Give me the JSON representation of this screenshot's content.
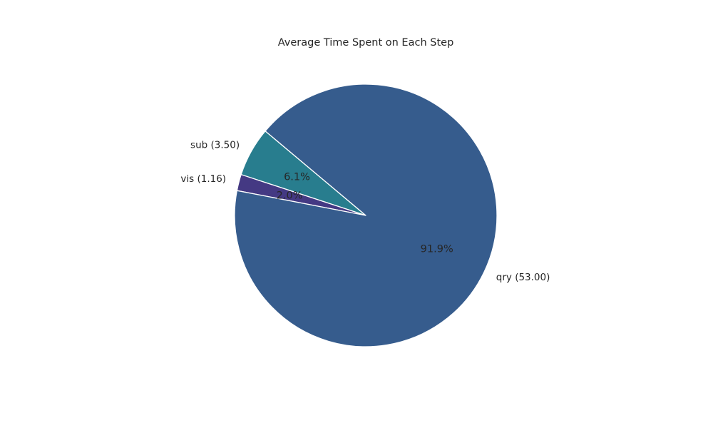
{
  "chart_data": {
    "type": "pie",
    "title": "Average Time Spent on Each Step",
    "slices": [
      {
        "name": "sub",
        "value": 3.5,
        "label": "sub (3.50)",
        "percent_label": "6.1%",
        "color": "#287d8e"
      },
      {
        "name": "vis",
        "value": 1.16,
        "label": "vis (1.16)",
        "percent_label": "2.0%",
        "color": "#443983"
      },
      {
        "name": "qry",
        "value": 53.0,
        "label": "qry (53.00)",
        "percent_label": "91.9%",
        "color": "#365c8d"
      }
    ],
    "start_angle_deg": 140,
    "direction": "counterclockwise",
    "edge_color": "#ffffff"
  }
}
